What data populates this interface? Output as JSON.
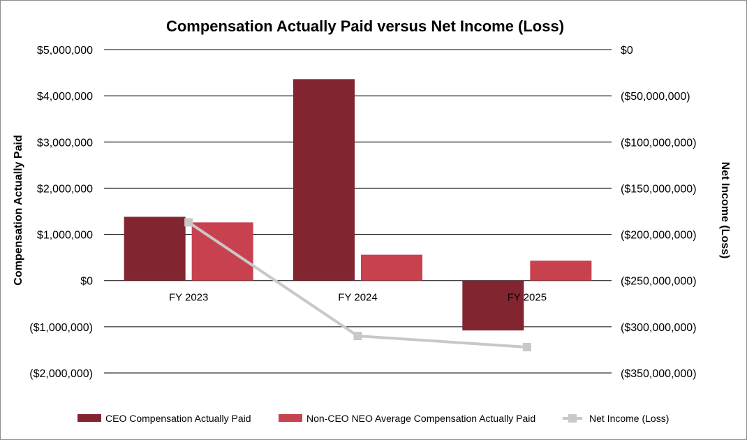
{
  "chart_data": {
    "type": "bar",
    "title": "Compensation Actually Paid versus Net Income (Loss)",
    "categories": [
      "FY 2023",
      "FY 2024",
      "FY 2025"
    ],
    "series": [
      {
        "name": "CEO Compensation Actually Paid",
        "type": "bar",
        "axis": "left",
        "color": "#822531",
        "values": [
          1380000,
          4360000,
          -1080000
        ]
      },
      {
        "name": "Non-CEO NEO Average Compensation Actually Paid",
        "type": "bar",
        "axis": "left",
        "color": "#c8414f",
        "values": [
          1260000,
          560000,
          430000
        ]
      },
      {
        "name": "Net Income (Loss)",
        "type": "line",
        "axis": "right",
        "color": "#c8c8c8",
        "values": [
          -187000000,
          -310000000,
          -322000000
        ]
      }
    ],
    "ylabel": "Compensation Actually Paid",
    "y2label": "Net Income (Loss)",
    "ylim": [
      -2000000,
      5000000
    ],
    "y2lim": [
      -350000000,
      0
    ],
    "yticks": [
      5000000,
      4000000,
      3000000,
      2000000,
      1000000,
      0,
      -1000000,
      -2000000
    ],
    "ytick_labels": [
      "$5,000,000",
      "$4,000,000",
      "$3,000,000",
      "$2,000,000",
      "$1,000,000",
      "$0",
      "($1,000,000)",
      "($2,000,000)"
    ],
    "y2ticks": [
      0,
      -50000000,
      -100000000,
      -150000000,
      -200000000,
      -250000000,
      -300000000,
      -350000000
    ],
    "y2tick_labels": [
      "$0",
      "($50,000,000)",
      "($100,000,000)",
      "($150,000,000)",
      "($200,000,000)",
      "($250,000,000)",
      "($300,000,000)",
      "($350,000,000)"
    ],
    "grid": true,
    "legend_position": "bottom"
  }
}
